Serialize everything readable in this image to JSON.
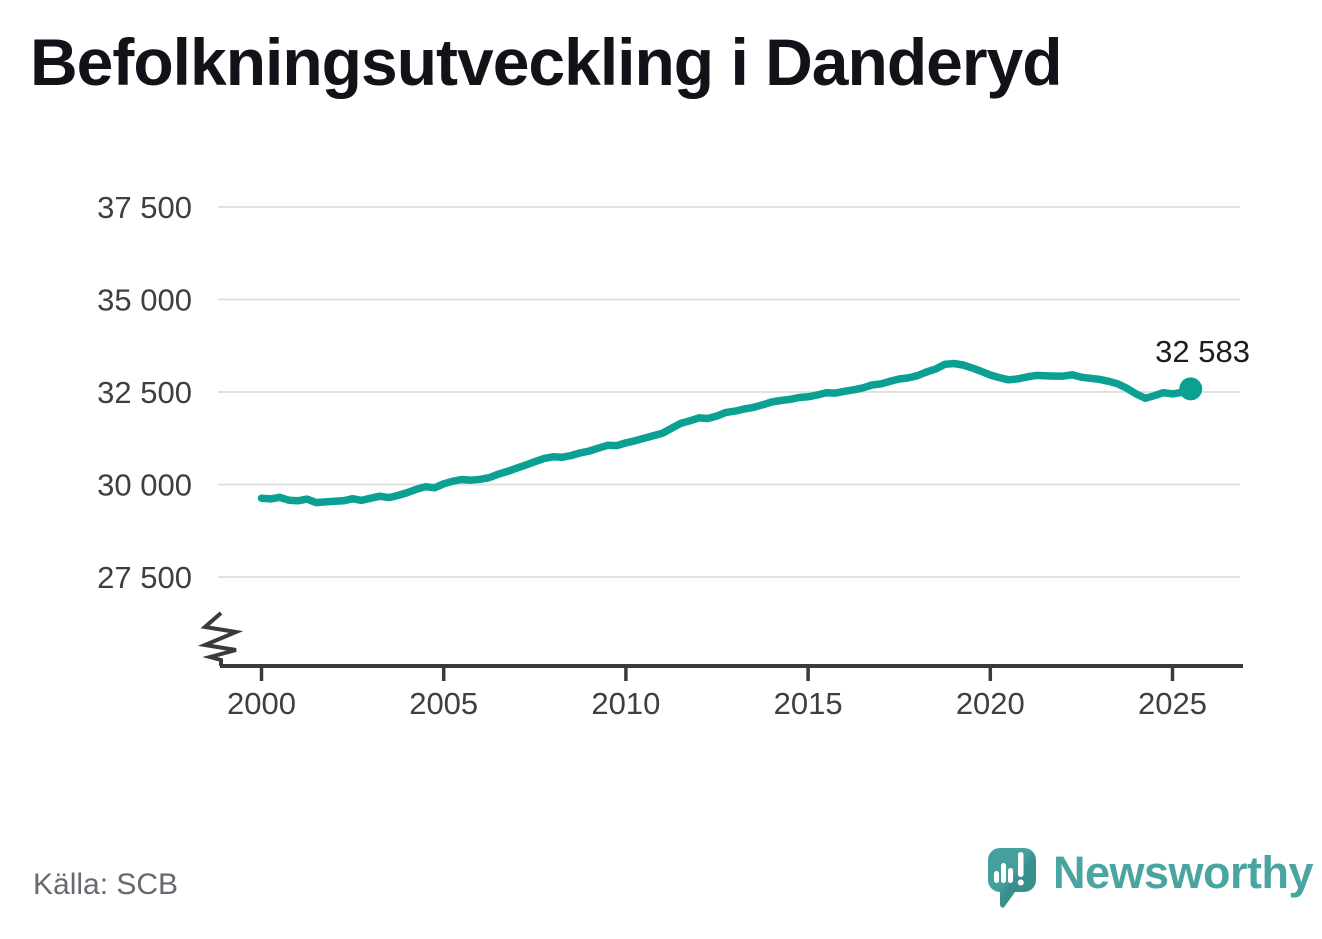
{
  "title": "Befolkningsutveckling i Danderyd",
  "source": "Källa: SCB",
  "brand": {
    "name": "Newsworthy",
    "icon": "speech-bubble-bar-chart-icon",
    "color": "#4aa5a1"
  },
  "colors": {
    "line": "#0aa192",
    "grid": "#e1e1e1",
    "axis": "#3a3a3a",
    "tick_text": "#3f3f3f"
  },
  "chart_data": {
    "type": "line",
    "title": "Befolkningsutveckling i Danderyd",
    "xlabel": "",
    "ylabel": "",
    "legend": "none",
    "grid": "horizontal",
    "axis_break_bottom_left": true,
    "x_ticks": [
      2000,
      2005,
      2010,
      2015,
      2020,
      2025
    ],
    "x_tick_labels": [
      "2000",
      "2005",
      "2010",
      "2015",
      "2020",
      "2025"
    ],
    "y_ticks": [
      37500,
      35000,
      32500,
      30000,
      27500
    ],
    "y_tick_labels": [
      "37 500",
      "35 000",
      "32 500",
      "30 000",
      "27 500"
    ],
    "ylim": [
      26500,
      38200
    ],
    "xlim": [
      1998.9,
      2027.4
    ],
    "end_label": "32 583",
    "end_value": 32583,
    "x": [
      2000.0,
      2000.25,
      2000.5,
      2000.75,
      2001.0,
      2001.25,
      2001.5,
      2001.75,
      2002.0,
      2002.25,
      2002.5,
      2002.75,
      2003.0,
      2003.25,
      2003.5,
      2003.75,
      2004.0,
      2004.25,
      2004.5,
      2004.75,
      2005.0,
      2005.25,
      2005.5,
      2005.75,
      2006.0,
      2006.25,
      2006.5,
      2006.75,
      2007.0,
      2007.25,
      2007.5,
      2007.75,
      2008.0,
      2008.25,
      2008.5,
      2008.75,
      2009.0,
      2009.25,
      2009.5,
      2009.75,
      2010.0,
      2010.25,
      2010.5,
      2010.75,
      2011.0,
      2011.25,
      2011.5,
      2011.75,
      2012.0,
      2012.25,
      2012.5,
      2012.75,
      2013.0,
      2013.25,
      2013.5,
      2013.75,
      2014.0,
      2014.25,
      2014.5,
      2014.75,
      2015.0,
      2015.25,
      2015.5,
      2015.75,
      2016.0,
      2016.25,
      2016.5,
      2016.75,
      2017.0,
      2017.25,
      2017.5,
      2017.75,
      2018.0,
      2018.25,
      2018.5,
      2018.75,
      2019.0,
      2019.25,
      2019.5,
      2019.75,
      2020.0,
      2020.25,
      2020.5,
      2020.75,
      2021.0,
      2021.25,
      2021.5,
      2021.75,
      2022.0,
      2022.25,
      2022.5,
      2022.75,
      2023.0,
      2023.25,
      2023.5,
      2023.75,
      2024.0,
      2024.25,
      2024.5,
      2024.75,
      2025.0,
      2025.25,
      2025.5
    ],
    "series": [
      {
        "name": "Befolkning",
        "values": [
          29630,
          29610,
          29655,
          29575,
          29560,
          29605,
          29510,
          29530,
          29545,
          29560,
          29615,
          29570,
          29630,
          29685,
          29645,
          29705,
          29780,
          29870,
          29940,
          29910,
          30020,
          30090,
          30135,
          30115,
          30140,
          30185,
          30280,
          30355,
          30440,
          30525,
          30615,
          30700,
          30750,
          30735,
          30785,
          30855,
          30905,
          30985,
          31060,
          31050,
          31125,
          31180,
          31250,
          31315,
          31385,
          31520,
          31650,
          31720,
          31800,
          31785,
          31850,
          31950,
          31985,
          32040,
          32085,
          32150,
          32230,
          32270,
          32300,
          32350,
          32370,
          32420,
          32480,
          32470,
          32520,
          32560,
          32610,
          32690,
          32720,
          32790,
          32850,
          32880,
          32940,
          33040,
          33120,
          33250,
          33270,
          33230,
          33150,
          33060,
          32960,
          32890,
          32830,
          32855,
          32905,
          32950,
          32940,
          32930,
          32930,
          32965,
          32900,
          32870,
          32840,
          32790,
          32720,
          32600,
          32450,
          32330,
          32400,
          32480,
          32450,
          32490,
          32583
        ]
      }
    ]
  }
}
